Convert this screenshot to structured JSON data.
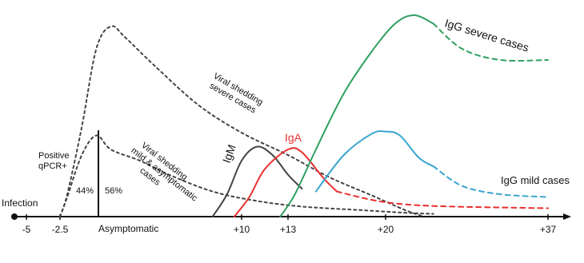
{
  "chart_data": {
    "type": "line",
    "x_ticks": [
      "-5",
      "-2.5",
      "+10",
      "+13",
      "+20",
      "+37"
    ],
    "x_tick_values": [
      -5,
      -2.5,
      10,
      13,
      20,
      37
    ],
    "labels": {
      "infection": "Infection",
      "asymptomatic": "Asymptomatic",
      "positive_qpcr_1": "Positive",
      "positive_qpcr_2": "qPCR+",
      "pct_left": "44%",
      "pct_right": "56%",
      "viral_severe_1": "Viral shedding",
      "viral_severe_2": "severe cases",
      "viral_mild_1": "Viral shedding",
      "viral_mild_2": "mild & asymptomatic",
      "viral_mild_3": "cases",
      "igm": "IgM",
      "iga": "IgA",
      "igg_severe": "IgG severe cases",
      "igg_mild": "IgG mild cases"
    },
    "colors": {
      "axis": "#111111",
      "viral": "#444444",
      "igm": "#444444",
      "iga": "#e8302f",
      "igg_severe": "#2fa062",
      "igg_mild": "#3aa6cf"
    },
    "series": [
      {
        "name": "Viral shedding severe cases",
        "style": "dotted",
        "points": [
          [
            -2.5,
            0
          ],
          [
            -2,
            0.4
          ],
          [
            -1,
            1.6
          ],
          [
            0,
            3.0
          ],
          [
            1,
            3.4
          ],
          [
            2,
            3.2
          ],
          [
            4,
            2.7
          ],
          [
            7,
            2.0
          ],
          [
            10,
            1.5
          ],
          [
            13,
            1.1
          ],
          [
            16,
            0.7
          ],
          [
            19,
            0.38
          ],
          [
            22,
            0.12
          ],
          [
            24,
            0
          ]
        ]
      },
      {
        "name": "Viral shedding mild & asymptomatic cases",
        "style": "dotted",
        "points": [
          [
            -2.5,
            0
          ],
          [
            -2,
            0.35
          ],
          [
            -1,
            1.1
          ],
          [
            0,
            1.45
          ],
          [
            1,
            1.2
          ],
          [
            3,
            1.0
          ],
          [
            5,
            0.75
          ],
          [
            8,
            0.45
          ],
          [
            11,
            0.28
          ],
          [
            14,
            0.18
          ],
          [
            18,
            0.12
          ],
          [
            22,
            0.07
          ],
          [
            25,
            0.05
          ]
        ]
      },
      {
        "name": "IgM",
        "style": "solid",
        "points": [
          [
            8,
            0
          ],
          [
            9,
            0.4
          ],
          [
            10,
            1.0
          ],
          [
            11,
            1.25
          ],
          [
            12,
            1.1
          ],
          [
            13,
            0.75
          ],
          [
            14,
            0.5
          ]
        ]
      },
      {
        "name": "IgA",
        "style": "solid",
        "points": [
          [
            9.5,
            0
          ],
          [
            10.5,
            0.35
          ],
          [
            11.5,
            0.85
          ],
          [
            13,
            1.2
          ],
          [
            14,
            1.15
          ],
          [
            15.5,
            0.7
          ],
          [
            16.5,
            0.45
          ]
        ]
      },
      {
        "name": "IgA",
        "style": "dashed",
        "points": [
          [
            16.5,
            0.45
          ],
          [
            19,
            0.3
          ],
          [
            22,
            0.22
          ],
          [
            27,
            0.18
          ],
          [
            37,
            0.15
          ]
        ]
      },
      {
        "name": "IgG severe cases",
        "style": "solid",
        "points": [
          [
            12.5,
            0
          ],
          [
            13.5,
            0.4
          ],
          [
            15,
            1.2
          ],
          [
            17,
            2.2
          ],
          [
            19,
            2.95
          ],
          [
            21,
            3.45
          ],
          [
            23,
            3.6
          ],
          [
            25,
            3.45
          ]
        ]
      },
      {
        "name": "IgG severe cases",
        "style": "dashed",
        "points": [
          [
            25,
            3.45
          ],
          [
            28,
            3.0
          ],
          [
            32,
            2.8
          ],
          [
            37,
            2.8
          ]
        ]
      },
      {
        "name": "IgG mild cases",
        "style": "solid",
        "points": [
          [
            15,
            0.45
          ],
          [
            17,
            1.1
          ],
          [
            19,
            1.48
          ],
          [
            20,
            1.52
          ],
          [
            21.5,
            1.45
          ],
          [
            23.5,
            1.05
          ],
          [
            25,
            0.9
          ]
        ]
      },
      {
        "name": "IgG mild cases",
        "style": "dashed",
        "points": [
          [
            25,
            0.9
          ],
          [
            28,
            0.55
          ],
          [
            32,
            0.4
          ],
          [
            37,
            0.35
          ]
        ]
      }
    ]
  }
}
